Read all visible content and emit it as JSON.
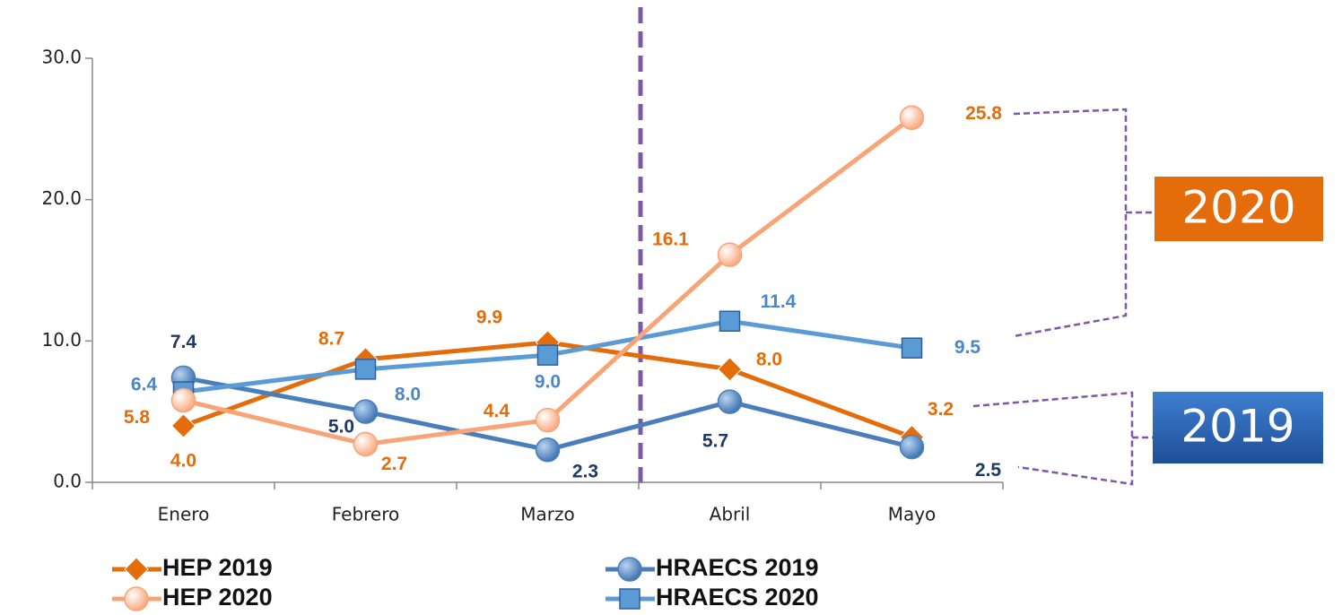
{
  "chart_data": {
    "type": "line",
    "categories": [
      "Enero",
      "Febrero",
      "Marzo",
      "Abril",
      "Mayo"
    ],
    "ylim": [
      0,
      30
    ],
    "yticks": [
      {
        "value": 0,
        "label": "0.0"
      },
      {
        "value": 10,
        "label": "10.0"
      },
      {
        "value": 20,
        "label": "20.0"
      },
      {
        "value": 30,
        "label": "30.0"
      }
    ],
    "series": [
      {
        "name": "HEP 2019",
        "color": "#e46c0a",
        "label_color": "#e46c0a",
        "marker": "diamond",
        "values": [
          4.0,
          8.7,
          9.9,
          8.0,
          3.2
        ],
        "value_labels": [
          "4.0",
          "8.7",
          "9.9",
          "8.0",
          "3.2"
        ]
      },
      {
        "name": "HEP 2020",
        "color": "#f9a477",
        "label_color": "#e46c0a",
        "marker": "circle",
        "values": [
          5.8,
          2.7,
          4.4,
          16.1,
          25.8
        ],
        "value_labels": [
          "5.8",
          "2.7",
          "4.4",
          "16.1",
          "25.8"
        ]
      },
      {
        "name": "HRAECS 2019",
        "color": "#4a7ebb",
        "label_color": "#1f3864",
        "marker": "circle",
        "values": [
          7.4,
          5.0,
          2.3,
          5.7,
          2.5
        ],
        "value_labels": [
          "7.4",
          "5.0",
          "2.3",
          "5.7",
          "2.5"
        ]
      },
      {
        "name": "HRAECS 2020",
        "color": "#5b9bd5",
        "label_color": "#4a86c8",
        "marker": "square",
        "values": [
          6.4,
          8.0,
          9.0,
          11.4,
          9.5
        ],
        "value_labels": [
          "6.4",
          "8.0",
          "9.0",
          "11.4",
          "9.5"
        ]
      }
    ],
    "annotations": [
      "2020",
      "2019"
    ]
  }
}
